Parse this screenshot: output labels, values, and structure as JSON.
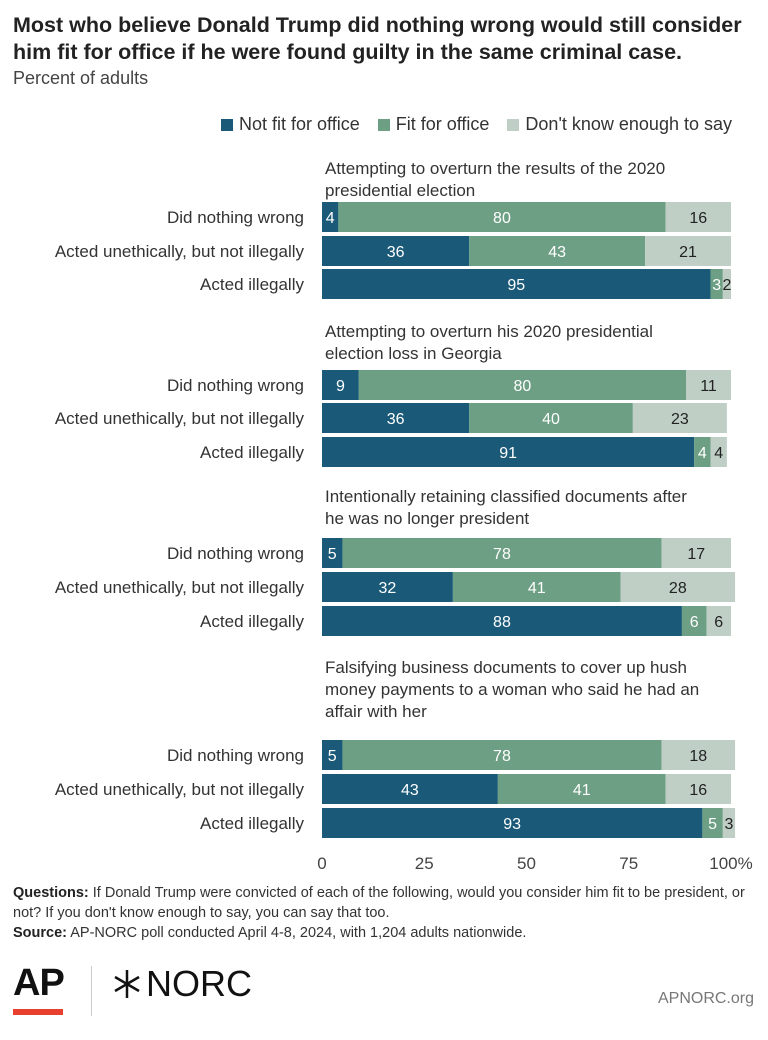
{
  "title": "Most who believe Donald Trump did nothing wrong would still consider him fit for office if he were found guilty in the same criminal case.",
  "subtitle": "Percent of adults",
  "legend": [
    {
      "label": "Not fit for office",
      "color": "#1a5a78"
    },
    {
      "label": "Fit for office",
      "color": "#6c9f83"
    },
    {
      "label": "Don't know enough to say",
      "color": "#bfcfc6"
    }
  ],
  "notes": {
    "questions_label": "Questions:",
    "questions_text": "If Donald Trump were convicted of each of the following, would you consider him fit to be president, or not? If you don't know enough to say, you can say that too.",
    "source_label": "Source:",
    "source_text": "AP-NORC poll conducted April 4-8, 2024, with 1,204 adults nationwide."
  },
  "footer": {
    "logo_ap": "AP",
    "logo_norc": "NORC",
    "site": "APNORC.org"
  },
  "chart_data": {
    "type": "bar",
    "orientation": "horizontal",
    "stacked": true,
    "xlim": [
      0,
      100
    ],
    "xticks": [
      "0",
      "25",
      "50",
      "75",
      "100%"
    ],
    "xtick_values": [
      0,
      25,
      50,
      75,
      100
    ],
    "series_names": [
      "Not fit for office",
      "Fit for office",
      "Don't know enough to say"
    ],
    "colors": [
      "#1a5a78",
      "#6c9f83",
      "#bfcfc6"
    ],
    "groups": [
      {
        "title": "Attempting to overturn the results of the 2020 presidential election",
        "rows": [
          {
            "label": "Did nothing wrong",
            "values": [
              4,
              80,
              16
            ]
          },
          {
            "label": "Acted unethically, but not illegally",
            "values": [
              36,
              43,
              21
            ]
          },
          {
            "label": "Acted illegally",
            "values": [
              95,
              3,
              2
            ]
          }
        ]
      },
      {
        "title": "Attempting to overturn his 2020 presidential election loss in Georgia",
        "rows": [
          {
            "label": "Did nothing wrong",
            "values": [
              9,
              80,
              11
            ]
          },
          {
            "label": "Acted unethically, but not illegally",
            "values": [
              36,
              40,
              23
            ]
          },
          {
            "label": "Acted illegally",
            "values": [
              91,
              4,
              4
            ]
          }
        ]
      },
      {
        "title": "Intentionally retaining classified documents after he was no longer president",
        "rows": [
          {
            "label": "Did nothing wrong",
            "values": [
              5,
              78,
              17
            ]
          },
          {
            "label": "Acted unethically, but not illegally",
            "values": [
              32,
              41,
              28
            ]
          },
          {
            "label": "Acted illegally",
            "values": [
              88,
              6,
              6
            ]
          }
        ]
      },
      {
        "title": "Falsifying business documents to cover up hush money payments to a woman who said he had an affair with her",
        "rows": [
          {
            "label": "Did nothing wrong",
            "values": [
              5,
              78,
              18
            ]
          },
          {
            "label": "Acted unethically, but not illegally",
            "values": [
              43,
              41,
              16
            ]
          },
          {
            "label": "Acted illegally",
            "values": [
              93,
              5,
              3
            ]
          }
        ]
      }
    ]
  }
}
